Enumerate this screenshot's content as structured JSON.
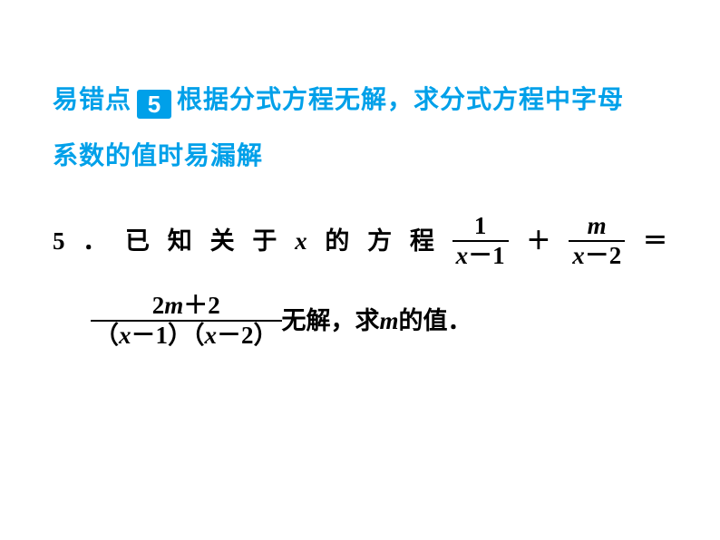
{
  "colors": {
    "accent": "#00a0e9",
    "text_black": "#000000",
    "bg": "#ffffff"
  },
  "heading": {
    "prefix": "易错点",
    "badge_number": "5",
    "title_part1": "根据分式方程无解，求分式方程中字母",
    "title_part2": "系数的值时易漏解"
  },
  "problem": {
    "number": "5",
    "dot": "．",
    "intro_spaced": "已知关于",
    "var_x": "x",
    "intro2_spaced": "的方程",
    "frac1_num": "1",
    "frac1_den_var": "x",
    "frac1_den_op": "－",
    "frac1_den_num": "1",
    "plus": "＋",
    "frac2_num_var": "m",
    "frac2_den_var": "x",
    "frac2_den_op": "－",
    "frac2_den_num": "2",
    "equals": "＝",
    "frac3_num_a": "2",
    "frac3_num_var": "m",
    "frac3_num_op": "＋",
    "frac3_num_b": "2",
    "frac3_den_lp1": "（",
    "frac3_den_v1": "x",
    "frac3_den_op1": "－",
    "frac3_den_n1": "1",
    "frac3_den_rp1": "）",
    "frac3_den_lp2": "（",
    "frac3_den_v2": "x",
    "frac3_den_op2": "－",
    "frac3_den_n2": "2",
    "frac3_den_rp2": "）",
    "tail1": "无解，求 ",
    "tail_var": "m",
    "tail2": " 的值．"
  }
}
